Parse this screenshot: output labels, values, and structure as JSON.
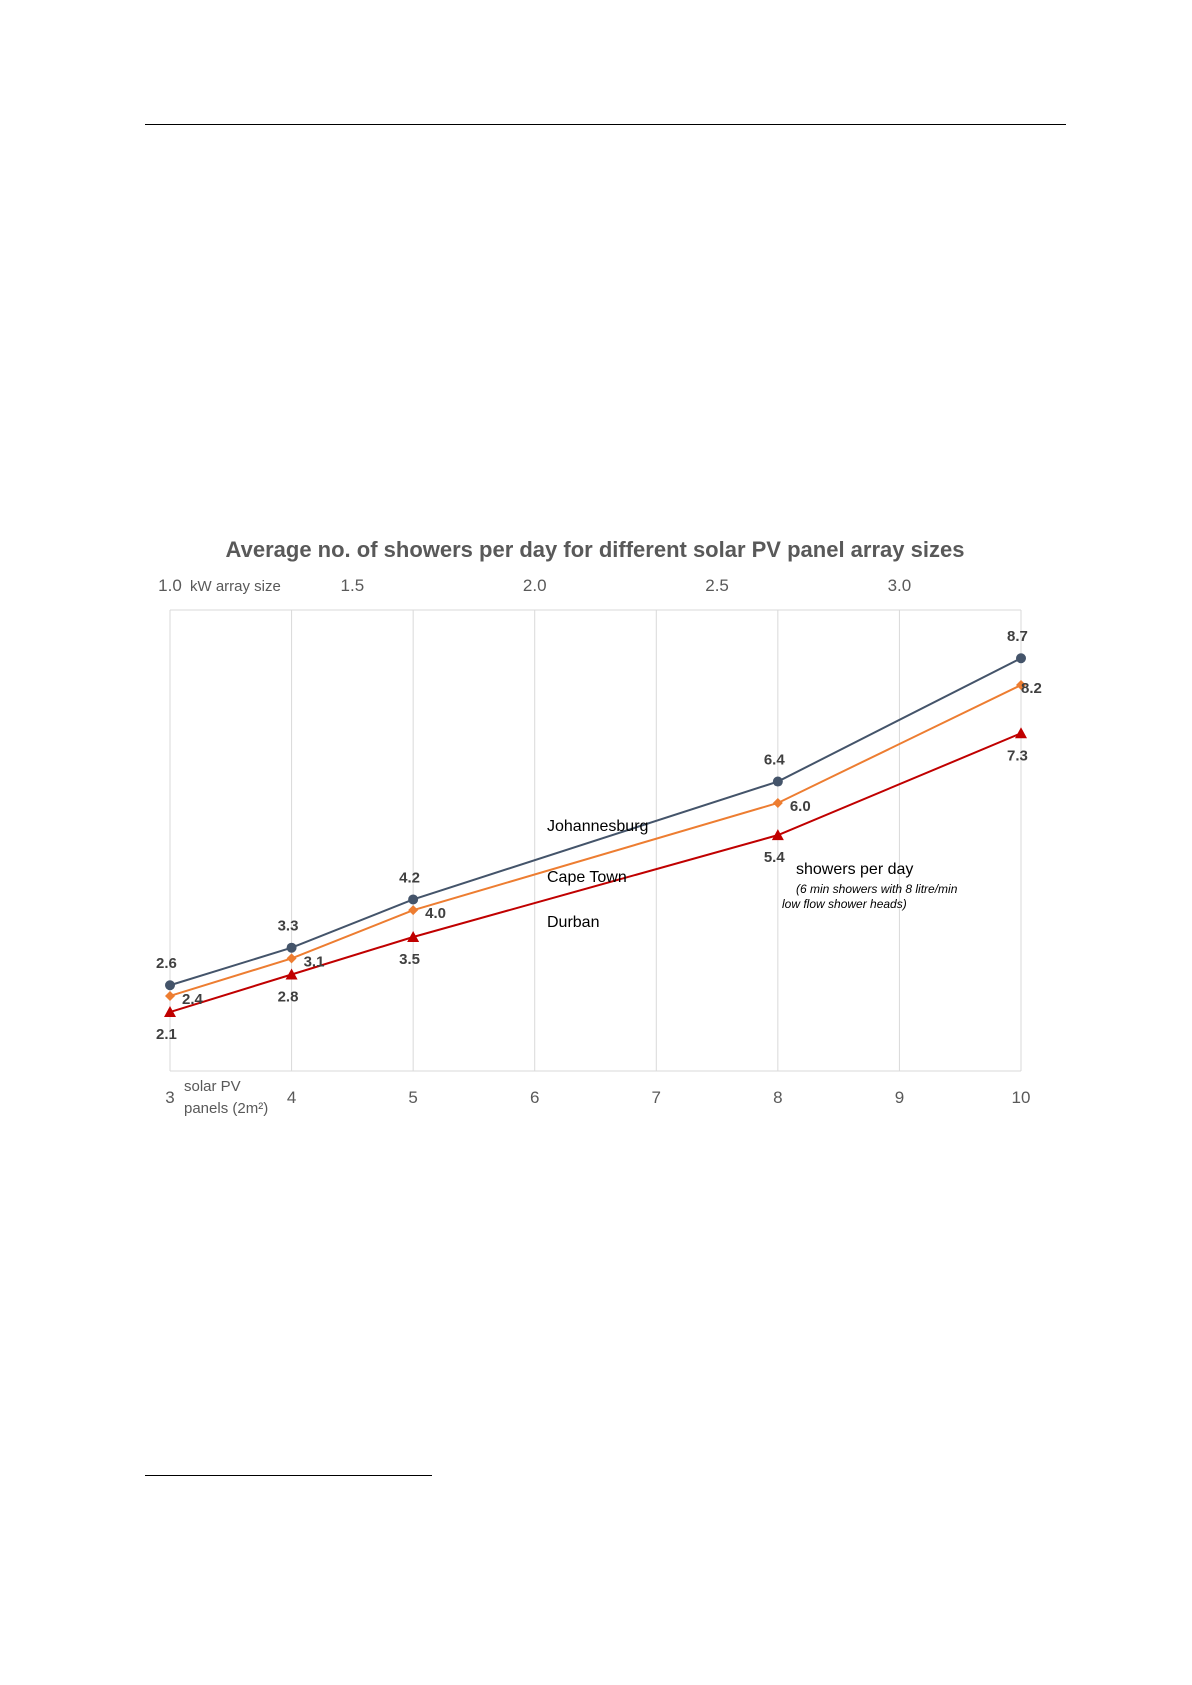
{
  "chart_data": {
    "type": "line",
    "title": "Average no. of showers per day for different solar PV panel array sizes",
    "x": [
      3,
      4,
      5,
      8,
      10
    ],
    "xlim": [
      3,
      10
    ],
    "x_ticks": [
      "3",
      "4",
      "5",
      "6",
      "7",
      "8",
      "9",
      "10"
    ],
    "xlabel": "solar PV panels (2m²)",
    "top_axis": {
      "label": "kW array size",
      "ticks": [
        "1.0",
        "1.5",
        "2.0",
        "2.5",
        "3.0"
      ],
      "tick_values": [
        1.0,
        1.5,
        2.0,
        2.5,
        3.0
      ]
    },
    "ylim": [
      1.0,
      9.6
    ],
    "grid": "vertical",
    "series": [
      {
        "name": "Johannesburg",
        "color": "#44546a",
        "marker": "circle",
        "values": [
          2.6,
          3.3,
          4.2,
          6.4,
          8.7
        ],
        "labels": [
          "2.6",
          "3.3",
          "4.2",
          "6.4",
          "8.7"
        ]
      },
      {
        "name": "Cape Town",
        "color": "#ed7d31",
        "marker": "diamond",
        "values": [
          2.4,
          3.1,
          4.0,
          6.0,
          8.2
        ],
        "labels": [
          "2.4",
          "3.1",
          "4.0",
          "6.0",
          "8.2"
        ]
      },
      {
        "name": "Durban",
        "color": "#c00000",
        "marker": "triangle",
        "values": [
          2.1,
          2.8,
          3.5,
          5.4,
          7.3
        ],
        "labels": [
          "2.1",
          "2.8",
          "3.5",
          "5.4",
          "7.3"
        ]
      }
    ],
    "annotation": {
      "main": "showers per day",
      "note_line1": "(6 min showers with 8 litre/min",
      "note_line2": "low flow shower heads)"
    }
  }
}
